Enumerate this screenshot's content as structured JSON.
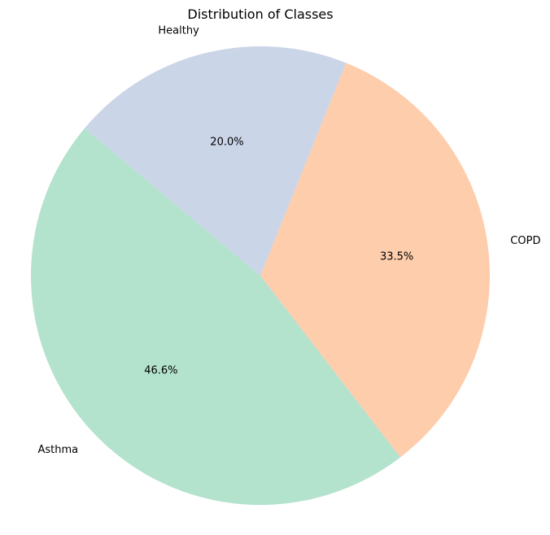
{
  "chart_data": {
    "type": "pie",
    "title": "Distribution of Classes",
    "categories": [
      "Asthma",
      "COPD",
      "Healthy"
    ],
    "values": [
      46.6,
      33.5,
      20.0
    ],
    "value_labels": [
      "46.6%",
      "33.5%",
      "20.0%"
    ],
    "colors": [
      "#b3e2cd",
      "#fdcdac",
      "#cbd5e8"
    ],
    "legend": "none",
    "grid": false
  }
}
